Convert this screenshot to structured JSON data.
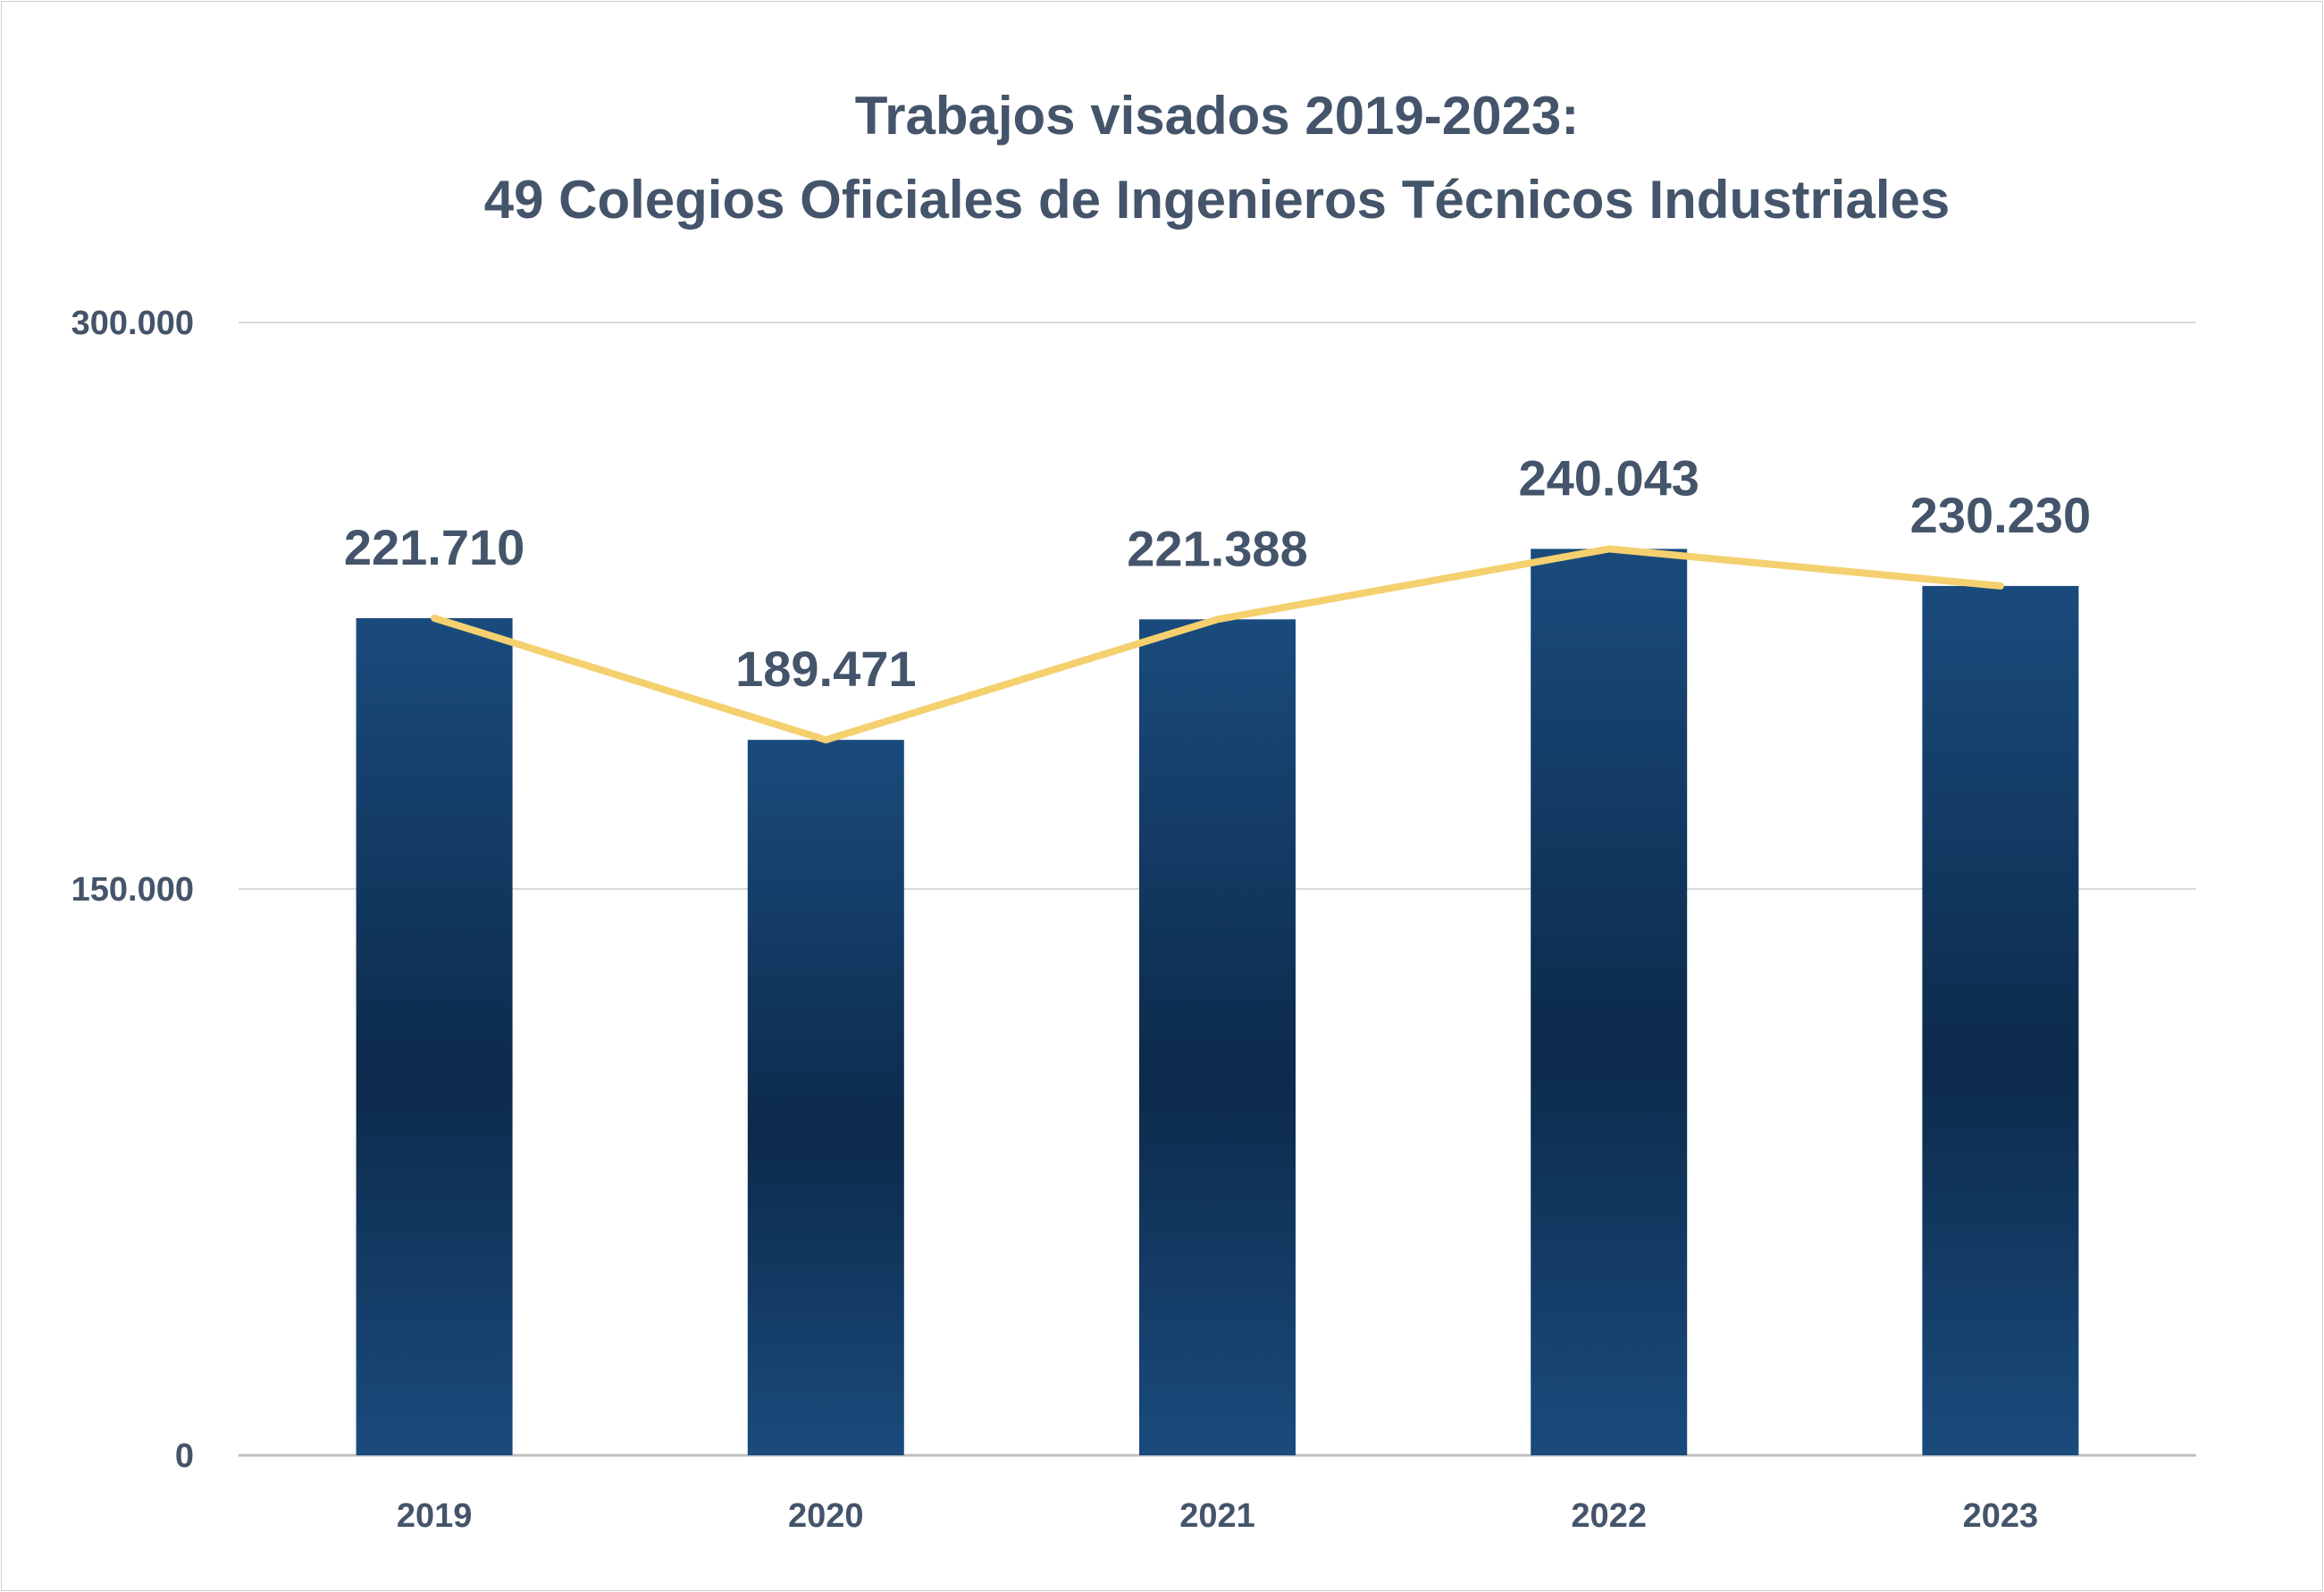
{
  "chart_data": {
    "type": "bar",
    "title": "Trabajos visados 2019-2023:",
    "subtitle": "49 Colegios Oficiales de Ingenieros Técnicos Industriales",
    "categories": [
      "2019",
      "2020",
      "2021",
      "2022",
      "2023"
    ],
    "values": [
      221710,
      189471,
      221388,
      240043,
      230230
    ],
    "data_labels": [
      "221.710",
      "189.471",
      "221.388",
      "240.043",
      "230.230"
    ],
    "overlay_line": {
      "type": "line",
      "values": [
        221710,
        189471,
        221388,
        240043,
        230230
      ]
    },
    "yticks": [
      0,
      150000,
      300000
    ],
    "ytick_labels": [
      "0",
      "150.000",
      "300.000"
    ],
    "ylim": [
      0,
      300000
    ],
    "xlabel": "",
    "ylabel": "",
    "grid": true,
    "legend": "none"
  },
  "colors": {
    "bar_light": "#1a4b7d",
    "bar_dark": "#0c2a4b",
    "line": "#f4d06f",
    "text": "#44546a",
    "grid": "#d9d9d9",
    "axis": "#bfbfbf"
  }
}
